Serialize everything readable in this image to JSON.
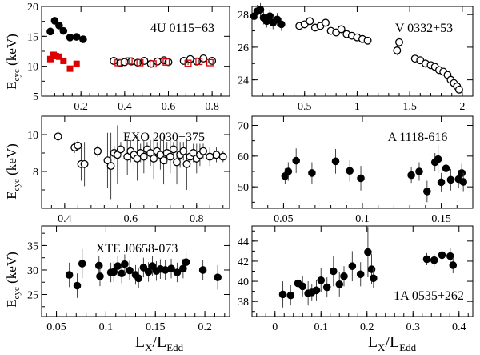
{
  "figure": {
    "ylabel_main": "E",
    "ylabel_sub": "cyc",
    "ylabel_unit": " (keV)",
    "xlabel_main": "L",
    "xlabel_sub1": "X",
    "xlabel_sep": "/L",
    "xlabel_sub2": "Edd"
  },
  "chart_data": [
    {
      "type": "scatter",
      "title": "4U 0115+63",
      "xlim": [
        0.02,
        0.88
      ],
      "ylim": [
        5,
        20
      ],
      "yticks": [
        5,
        10,
        15,
        20
      ],
      "xticks": [
        0.2,
        0.4,
        0.6,
        0.8
      ],
      "xticklabels": [
        "0.2",
        "0.4",
        "0.6",
        "0.8"
      ],
      "show_xticklabels": true,
      "series": [
        {
          "marker": "filled-circle",
          "color": "#000000",
          "x": [
            0.06,
            0.08,
            0.1,
            0.12,
            0.15,
            0.18,
            0.21
          ],
          "y": [
            15.8,
            17.6,
            16.8,
            15.9,
            14.8,
            14.9,
            14.5
          ],
          "err": [
            0.6,
            0.6,
            0.5,
            0.5,
            0.5,
            0.5,
            0.5
          ]
        },
        {
          "marker": "filled-square",
          "color": "#dd0000",
          "x": [
            0.06,
            0.075,
            0.085,
            0.1,
            0.12,
            0.15,
            0.18
          ],
          "y": [
            11.2,
            11.9,
            11.7,
            11.6,
            10.9,
            9.6,
            10.4
          ],
          "err": [
            0.3,
            0.3,
            0.3,
            0.3,
            0.3,
            0.3,
            0.3
          ]
        },
        {
          "marker": "open-circle",
          "color": "#000000",
          "x": [
            0.35,
            0.38,
            0.4,
            0.43,
            0.46,
            0.49,
            0.52,
            0.55,
            0.58,
            0.6,
            0.67,
            0.7,
            0.73,
            0.76,
            0.8
          ],
          "y": [
            10.9,
            10.5,
            10.7,
            10.8,
            10.6,
            10.9,
            10.4,
            10.8,
            11.0,
            10.7,
            10.9,
            11.2,
            10.8,
            11.3,
            10.9
          ],
          "err": [
            0.3,
            0.3,
            0.3,
            0.3,
            0.3,
            0.3,
            0.3,
            0.3,
            0.3,
            0.3,
            0.3,
            0.3,
            0.3,
            0.3,
            0.3
          ]
        },
        {
          "marker": "open-square",
          "color": "#dd0000",
          "x": [
            0.37,
            0.42,
            0.47,
            0.53,
            0.59,
            0.69,
            0.74,
            0.79
          ],
          "y": [
            10.6,
            10.9,
            10.6,
            10.4,
            10.7,
            10.5,
            10.8,
            10.6
          ],
          "err": [
            0.3,
            0.3,
            0.3,
            0.3,
            0.3,
            0.3,
            0.3,
            0.3
          ]
        }
      ]
    },
    {
      "type": "scatter",
      "title": "V 0332+53",
      "xlim": [
        0.0,
        2.1
      ],
      "ylim": [
        23,
        28.5
      ],
      "yticks": [
        24,
        26,
        28
      ],
      "xticks": [
        0.5,
        1.0,
        1.5,
        2.0
      ],
      "xticklabels": [
        "0.5",
        "1",
        "1.5",
        "2"
      ],
      "show_xticklabels": true,
      "series": [
        {
          "marker": "filled-circle",
          "color": "#000000",
          "x": [
            0.02,
            0.05,
            0.08,
            0.11,
            0.14,
            0.17,
            0.2,
            0.24,
            0.28
          ],
          "y": [
            27.9,
            28.2,
            28.3,
            27.8,
            27.6,
            27.9,
            27.5,
            27.7,
            27.4
          ],
          "err": [
            0.4,
            0.4,
            0.4,
            0.4,
            0.4,
            0.4,
            0.4,
            0.4,
            0.4
          ]
        },
        {
          "marker": "open-circle",
          "color": "#000000",
          "x": [
            0.45,
            0.5,
            0.55,
            0.6,
            0.65,
            0.7,
            0.75,
            0.8,
            0.85,
            0.9,
            0.95,
            1.0,
            1.05,
            1.1,
            1.38,
            1.4,
            1.55,
            1.6,
            1.65,
            1.7,
            1.74,
            1.78,
            1.82,
            1.86,
            1.89,
            1.92,
            1.95,
            1.97
          ],
          "y": [
            27.3,
            27.4,
            27.6,
            27.2,
            27.3,
            27.5,
            27.0,
            26.9,
            27.1,
            26.8,
            26.7,
            26.6,
            26.5,
            26.4,
            25.8,
            26.3,
            25.3,
            25.2,
            25.0,
            24.9,
            24.8,
            24.6,
            24.5,
            24.3,
            24.0,
            23.8,
            23.6,
            23.4
          ],
          "err": [
            0.2,
            0.2,
            0.2,
            0.2,
            0.2,
            0.2,
            0.2,
            0.2,
            0.2,
            0.2,
            0.2,
            0.2,
            0.2,
            0.2,
            0.3,
            0.3,
            0.2,
            0.2,
            0.2,
            0.2,
            0.2,
            0.2,
            0.2,
            0.2,
            0.2,
            0.2,
            0.2,
            0.2
          ]
        }
      ]
    },
    {
      "type": "scatter",
      "title": "EXO 2030+375",
      "xlim": [
        0.33,
        0.9
      ],
      "ylim": [
        6.0,
        11.0
      ],
      "yticks": [
        8,
        10
      ],
      "xticks": [
        0.4,
        0.6,
        0.8
      ],
      "xticklabels": [
        "0.4",
        "0.6",
        "0.8"
      ],
      "show_xticklabels": true,
      "series": [
        {
          "marker": "open-circle",
          "color": "#000000",
          "x": [
            0.38,
            0.43,
            0.44,
            0.45,
            0.46,
            0.5,
            0.53,
            0.54,
            0.55,
            0.56,
            0.57,
            0.59,
            0.6,
            0.61,
            0.62,
            0.63,
            0.64,
            0.65,
            0.66,
            0.67,
            0.68,
            0.69,
            0.7,
            0.71,
            0.72,
            0.73,
            0.74,
            0.75,
            0.76,
            0.77,
            0.78,
            0.79,
            0.8,
            0.81,
            0.82,
            0.84,
            0.86,
            0.88
          ],
          "y": [
            9.9,
            9.3,
            9.4,
            8.4,
            8.4,
            9.1,
            8.6,
            8.3,
            9.0,
            8.9,
            9.2,
            8.8,
            9.1,
            8.9,
            8.7,
            9.0,
            8.8,
            9.2,
            9.0,
            8.7,
            9.1,
            8.9,
            8.6,
            9.0,
            8.8,
            9.2,
            8.5,
            8.9,
            9.1,
            8.4,
            8.8,
            9.0,
            8.7,
            8.9,
            9.1,
            8.8,
            8.9,
            8.8
          ],
          "err": [
            0.3,
            0.3,
            0.3,
            0.9,
            1.2,
            0.3,
            1.5,
            1.8,
            0.4,
            1.6,
            0.4,
            1.0,
            0.6,
            0.8,
            1.2,
            0.5,
            0.9,
            0.4,
            0.7,
            1.1,
            0.5,
            0.8,
            1.3,
            0.6,
            0.9,
            0.4,
            1.2,
            0.7,
            0.5,
            1.4,
            0.6,
            0.5,
            0.8,
            0.6,
            0.4,
            0.5,
            0.4,
            0.3
          ]
        }
      ]
    },
    {
      "type": "scatter",
      "title": "A 1118-616",
      "xlim": [
        0.03,
        0.17
      ],
      "ylim": [
        43,
        73
      ],
      "yticks": [
        50,
        60,
        70
      ],
      "xticks": [
        0.05,
        0.1,
        0.15
      ],
      "xticklabels": [
        "0.05",
        "0.1",
        "0.15"
      ],
      "show_xticklabels": true,
      "series": [
        {
          "marker": "filled-circle",
          "color": "#000000",
          "x": [
            0.051,
            0.053,
            0.058,
            0.068,
            0.083,
            0.092,
            0.099,
            0.131,
            0.136,
            0.141,
            0.146,
            0.148,
            0.15,
            0.153,
            0.156,
            0.161,
            0.163,
            0.164
          ],
          "y": [
            53.5,
            55.0,
            58.5,
            54.5,
            58.3,
            55.2,
            52.8,
            53.8,
            55.0,
            48.5,
            58.0,
            59.0,
            51.5,
            56.0,
            52.3,
            52.5,
            54.5,
            51.6
          ],
          "err": [
            2.5,
            3.0,
            4.0,
            3.5,
            4.0,
            3.5,
            4.0,
            2.5,
            3.0,
            3.5,
            3.0,
            4.5,
            3.0,
            3.0,
            3.5,
            3.0,
            3.0,
            3.0
          ]
        }
      ]
    },
    {
      "type": "scatter",
      "title": "XTE J0658-073",
      "xlim": [
        0.035,
        0.225
      ],
      "ylim": [
        20.5,
        39
      ],
      "yticks": [
        25,
        30,
        35
      ],
      "xticks": [
        0.05,
        0.1,
        0.15,
        0.2
      ],
      "xticklabels": [
        "0.05",
        "0.1",
        "0.15",
        "0.2"
      ],
      "show_xticklabels": true,
      "series": [
        {
          "marker": "filled-circle",
          "color": "#000000",
          "x": [
            0.063,
            0.071,
            0.076,
            0.093,
            0.094,
            0.105,
            0.108,
            0.112,
            0.116,
            0.119,
            0.124,
            0.13,
            0.133,
            0.138,
            0.143,
            0.147,
            0.151,
            0.155,
            0.16,
            0.166,
            0.172,
            0.178,
            0.181,
            0.198,
            0.213
          ],
          "y": [
            29.0,
            26.8,
            31.3,
            30.9,
            28.7,
            29.5,
            29.6,
            30.8,
            29.3,
            31.2,
            29.9,
            29.0,
            28.3,
            30.5,
            29.6,
            30.8,
            29.8,
            30.2,
            30.0,
            30.3,
            29.5,
            30.3,
            31.6,
            30.0,
            28.5
          ],
          "err": [
            2.5,
            2.5,
            3.0,
            2.0,
            2.0,
            2.0,
            2.0,
            2.0,
            2.0,
            2.0,
            2.0,
            2.0,
            2.0,
            2.0,
            2.0,
            2.0,
            2.0,
            2.0,
            2.0,
            2.0,
            2.0,
            2.0,
            2.0,
            2.0,
            2.5
          ]
        }
      ]
    },
    {
      "type": "scatter",
      "title": "1A 0535+262",
      "xlim": [
        -0.05,
        0.43
      ],
      "ylim": [
        36.5,
        45.5
      ],
      "yticks": [
        38,
        40,
        42,
        44
      ],
      "xticks": [
        0.0,
        0.1,
        0.2,
        0.3,
        0.4
      ],
      "xticklabels": [
        "0",
        "0.1",
        "0.2",
        "0.3",
        "0.4"
      ],
      "show_xticklabels": true,
      "series": [
        {
          "marker": "filled-circle",
          "color": "#000000",
          "x": [
            0.017,
            0.034,
            0.05,
            0.06,
            0.072,
            0.08,
            0.09,
            0.1,
            0.113,
            0.127,
            0.14,
            0.15,
            0.168,
            0.186,
            0.202,
            0.21,
            0.214,
            0.33,
            0.346,
            0.363,
            0.381,
            0.387
          ],
          "y": [
            38.7,
            38.6,
            39.8,
            39.5,
            38.8,
            38.9,
            39.1,
            40.1,
            39.4,
            41.0,
            39.7,
            40.5,
            41.5,
            40.7,
            42.9,
            41.2,
            40.3,
            42.2,
            42.1,
            42.6,
            42.5,
            41.6
          ],
          "err": [
            1.3,
            1.0,
            1.5,
            1.0,
            1.2,
            0.8,
            1.0,
            1.2,
            1.0,
            1.5,
            1.2,
            1.0,
            1.5,
            1.2,
            2.5,
            1.5,
            1.0,
            0.6,
            0.6,
            0.7,
            0.8,
            0.8
          ]
        }
      ]
    }
  ]
}
